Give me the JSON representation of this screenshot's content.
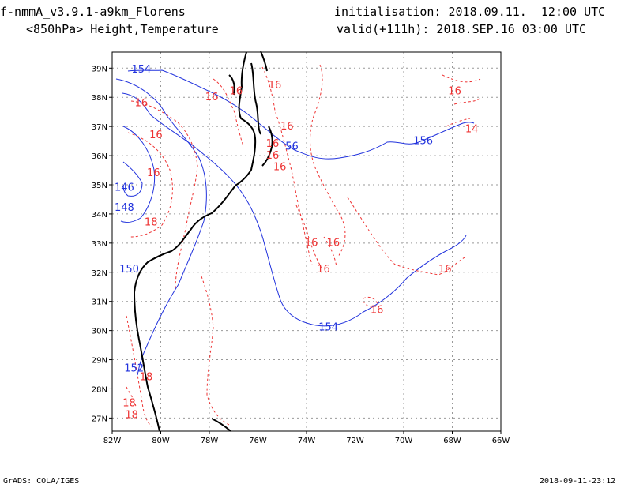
{
  "header": {
    "model_line": "f-nmmA_v3.9.1-a9km_Florens",
    "field_line": "<850hPa> Height,Temperature",
    "init_line": "initialisation: 2018.09.11.  12:00 UTC",
    "valid_line": "valid(+111h): 2018.SEP.16 03:00 UTC"
  },
  "footer": {
    "software": "GrADS: COLA/IGES",
    "timestamp": "2018-09-11-23:12"
  },
  "colors": {
    "height_contour": "#2233dd",
    "temperature_contour": "#ee3333",
    "coastline": "#000000",
    "grid": "#999999"
  },
  "map": {
    "lon_labels": [
      "82W",
      "80W",
      "78W",
      "76W",
      "74W",
      "72W",
      "70W",
      "68W",
      "66W"
    ],
    "lat_labels": [
      "39N",
      "38N",
      "37N",
      "36N",
      "35N",
      "34N",
      "33N",
      "32N",
      "31N",
      "30N",
      "29N",
      "28N",
      "27N"
    ],
    "grid": true,
    "height_labels": [
      {
        "text": "154",
        "lon": -80.8,
        "lat": 38.85
      },
      {
        "text": "56",
        "lon": -74.6,
        "lat": 36.2
      },
      {
        "text": "156",
        "lon": -69.2,
        "lat": 36.4
      },
      {
        "text": "146",
        "lon": -81.5,
        "lat": 34.8
      },
      {
        "text": "148",
        "lon": -81.5,
        "lat": 34.1
      },
      {
        "text": "150",
        "lon": -81.3,
        "lat": 32.0
      },
      {
        "text": "154",
        "lon": -73.1,
        "lat": 30.0
      },
      {
        "text": "152",
        "lon": -81.1,
        "lat": 28.6
      }
    ],
    "temperature_labels": [
      {
        "text": "16",
        "lon": -75.3,
        "lat": 38.3
      },
      {
        "text": "16",
        "lon": -67.9,
        "lat": 38.1
      },
      {
        "text": "16",
        "lon": -76.9,
        "lat": 38.1
      },
      {
        "text": "16",
        "lon": -77.9,
        "lat": 37.9
      },
      {
        "text": "16",
        "lon": -80.8,
        "lat": 37.7
      },
      {
        "text": "16",
        "lon": -74.8,
        "lat": 36.9
      },
      {
        "text": "14",
        "lon": -67.2,
        "lat": 36.8
      },
      {
        "text": "16",
        "lon": -80.2,
        "lat": 36.6
      },
      {
        "text": "16",
        "lon": -75.4,
        "lat": 36.3
      },
      {
        "text": "16",
        "lon": -75.4,
        "lat": 35.9
      },
      {
        "text": "16",
        "lon": -75.1,
        "lat": 35.5
      },
      {
        "text": "16",
        "lon": -80.3,
        "lat": 35.3
      },
      {
        "text": "18",
        "lon": -80.4,
        "lat": 33.6
      },
      {
        "text": "16",
        "lon": -73.8,
        "lat": 32.9
      },
      {
        "text": "16",
        "lon": -72.9,
        "lat": 32.9
      },
      {
        "text": "16",
        "lon": -73.3,
        "lat": 32.0
      },
      {
        "text": "16",
        "lon": -68.3,
        "lat": 32.0
      },
      {
        "text": "16",
        "lon": -71.1,
        "lat": 30.6
      },
      {
        "text": "18",
        "lon": -80.6,
        "lat": 28.3
      },
      {
        "text": "18",
        "lon": -81.3,
        "lat": 27.4
      },
      {
        "text": "18",
        "lon": -81.2,
        "lat": 27.0
      }
    ]
  }
}
